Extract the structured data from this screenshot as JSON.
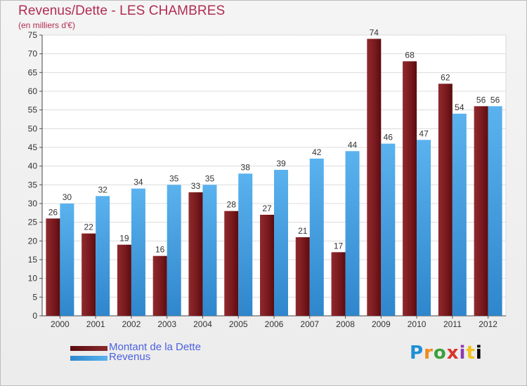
{
  "header": {
    "title": "Revenus/Dette - LES CHAMBRES",
    "subtitle": "(en milliers d'€)"
  },
  "legend": {
    "debt_label": "Montant de la Dette",
    "revenue_label": "Revenus"
  },
  "logo": {
    "text": "Proxiti"
  },
  "colors": {
    "debt": "#7a1a1e",
    "revenue": "#3d9be0",
    "title": "#b02d52",
    "legend_text": "#4b61e0"
  },
  "chart_data": {
    "type": "bar",
    "title": "Revenus/Dette - LES CHAMBRES",
    "subtitle": "(en milliers d'€)",
    "categories": [
      "2000",
      "2001",
      "2002",
      "2003",
      "2004",
      "2005",
      "2006",
      "2007",
      "2008",
      "2009",
      "2010",
      "2011",
      "2012"
    ],
    "series": [
      {
        "name": "Montant de la Dette",
        "values": [
          26,
          22,
          19,
          16,
          33,
          28,
          27,
          21,
          17,
          74,
          68,
          62,
          56
        ]
      },
      {
        "name": "Revenus",
        "values": [
          30,
          32,
          34,
          35,
          35,
          38,
          39,
          42,
          44,
          46,
          47,
          54,
          56
        ]
      }
    ],
    "ylim": [
      0,
      75
    ],
    "ytick_step": 5,
    "grid": true,
    "legend_position": "bottom-left"
  }
}
